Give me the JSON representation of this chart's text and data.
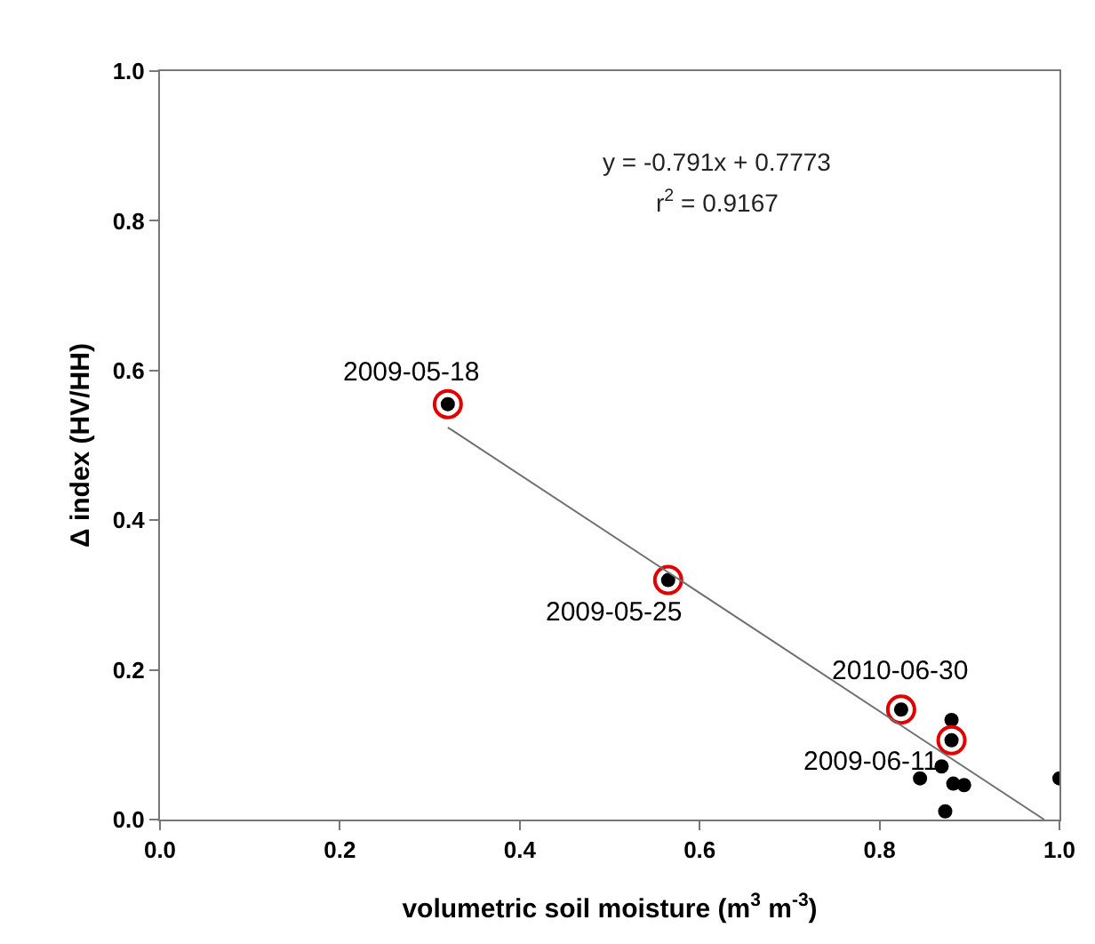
{
  "chart_data": {
    "type": "scatter",
    "xlabel": "volumetric soil moisture (m$^{3}$ m$^{-3}$)",
    "ylabel": "Δ index (HV/HH)",
    "xlim": [
      0,
      1
    ],
    "xticks": [
      {
        "value": 0,
        "label": "0.0"
      },
      0.2,
      0.4,
      0.6,
      0.8,
      {
        "value": 1,
        "label": "1.0"
      }
    ],
    "ylim": [
      0,
      1
    ],
    "yticks": [
      {
        "value": 0,
        "label": "0.0"
      },
      0.2,
      0.4,
      0.6,
      0.8,
      {
        "value": 1,
        "label": "1.0"
      }
    ],
    "grid": false,
    "marker": "circle",
    "series": [
      {
        "color": "#000000",
        "x": [
          0.32,
          0.565,
          0.824,
          0.88,
          0.88,
          0.869,
          0.845,
          0.882,
          0.894,
          0.873,
          1.0
        ],
        "values": [
          0.555,
          0.32,
          0.147,
          0.133,
          0.106,
          0.071,
          0.055,
          0.048,
          0.046,
          0.011,
          0.055
        ]
      },
      {
        "color": "#e00000",
        "x": [
          0.32,
          0.565,
          0.824,
          0.88
        ],
        "values": [
          0.555,
          0.32,
          0.147,
          0.106
        ]
      },
      {
        "type": "line",
        "marker": "none",
        "color": "#707070",
        "x": [
          0.32,
          0.983
        ],
        "values": [
          0.524,
          0.0
        ]
      }
    ],
    "annotations": [
      {
        "text": "2009-05-18",
        "x": 0.32,
        "y": 0.555
      },
      {
        "text": "2009-05-25",
        "x": 0.565,
        "y": 0.32
      },
      {
        "text": "2010-06-30",
        "x": 0.824,
        "y": 0.147
      },
      {
        "text": "2009-06-11",
        "x": 0.88,
        "y": 0.106
      },
      "y = -0.791x + 0.7773",
      "r$^{2}$ = 0.9167"
    ]
  }
}
